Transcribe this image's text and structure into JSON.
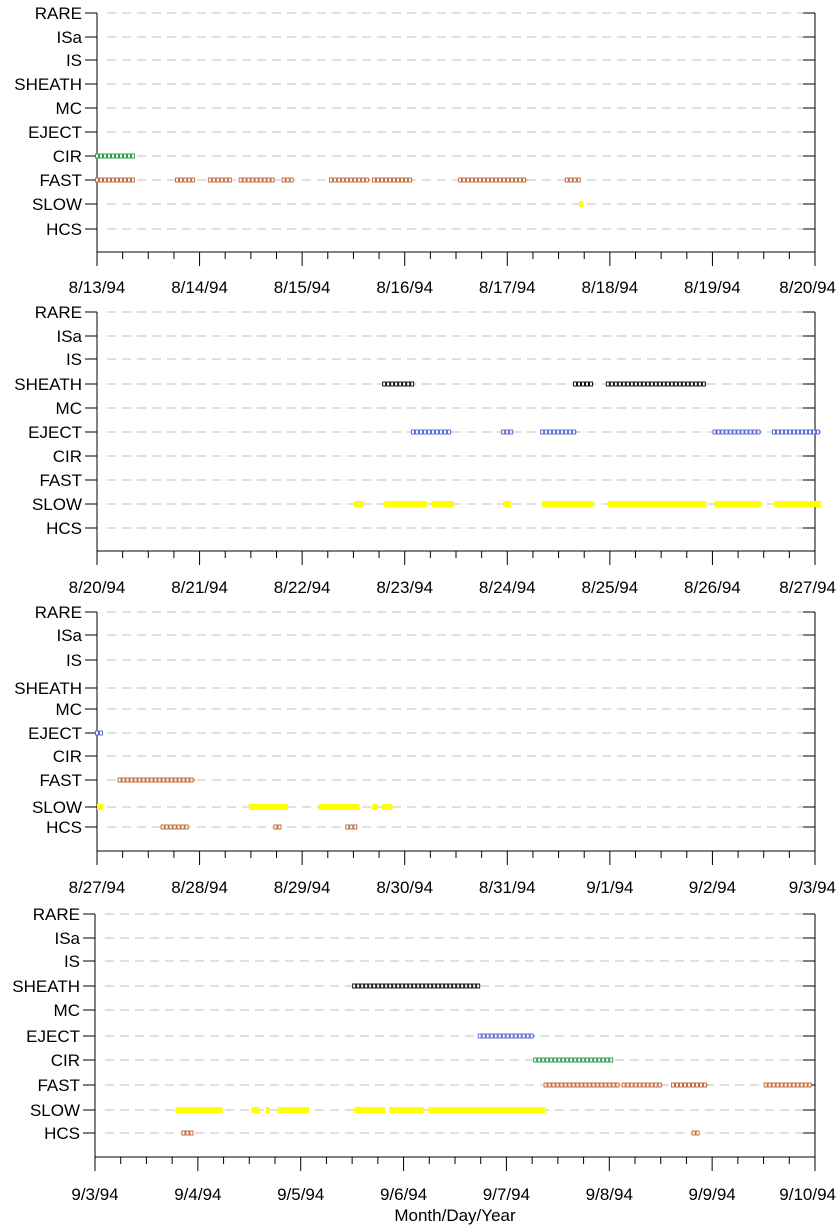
{
  "colors": {
    "grid": "#c0c0c0",
    "axis": "#000000",
    "SLOW": "#ffff00",
    "FAST": "#c0622c",
    "CIR": "#1a9641",
    "EJECT": "#5060d0",
    "SHEATH": "#000000",
    "HCS": "#c0622c"
  },
  "chart_data": [
    {
      "type": "timeline",
      "categories": [
        "HCS",
        "SLOW",
        "FAST",
        "CIR",
        "EJECT",
        "MC",
        "SHEATH",
        "IS",
        "ISa",
        "RARE"
      ],
      "x_tick_labels": [
        "8/13/94",
        "8/14/94",
        "8/15/94",
        "8/16/94",
        "8/17/94",
        "8/18/94",
        "8/19/94",
        "8/20/94"
      ],
      "xlim": [
        0,
        7
      ],
      "xlabel": "",
      "grid": true,
      "events": [
        {
          "category": "CIR",
          "intervals": [
            [
              0.0,
              0.36
            ]
          ]
        },
        {
          "category": "FAST",
          "intervals": [
            [
              0.0,
              0.36
            ],
            [
              0.78,
              0.82
            ],
            [
              0.86,
              0.94
            ],
            [
              1.1,
              1.3
            ],
            [
              1.4,
              1.72
            ],
            [
              1.82,
              1.9
            ],
            [
              2.28,
              2.66
            ],
            [
              2.7,
              3.08
            ],
            [
              3.54,
              4.2
            ],
            [
              4.58,
              4.7
            ]
          ]
        },
        {
          "category": "SLOW",
          "intervals": [
            [
              4.7,
              4.74
            ]
          ]
        }
      ]
    },
    {
      "type": "timeline",
      "categories": [
        "HCS",
        "SLOW",
        "FAST",
        "CIR",
        "EJECT",
        "MC",
        "SHEATH",
        "IS",
        "ISa",
        "RARE"
      ],
      "x_tick_labels": [
        "8/20/94",
        "8/21/94",
        "8/22/94",
        "8/23/94",
        "8/24/94",
        "8/25/94",
        "8/26/94",
        "8/27/94"
      ],
      "xlim": [
        0,
        7
      ],
      "xlabel": "",
      "grid": true,
      "events": [
        {
          "category": "SHEATH",
          "intervals": [
            [
              2.8,
              3.08
            ],
            [
              4.66,
              4.84
            ],
            [
              4.98,
              5.94
            ]
          ]
        },
        {
          "category": "EJECT",
          "intervals": [
            [
              3.08,
              3.46
            ],
            [
              3.96,
              4.04
            ],
            [
              4.34,
              4.68
            ],
            [
              6.02,
              6.48
            ],
            [
              6.6,
              7.06
            ]
          ]
        },
        {
          "category": "SLOW",
          "intervals": [
            [
              2.5,
              2.6
            ],
            [
              2.8,
              3.22
            ],
            [
              3.26,
              3.48
            ],
            [
              3.96,
              4.04
            ],
            [
              4.34,
              4.84
            ],
            [
              4.98,
              5.94
            ],
            [
              6.02,
              6.48
            ],
            [
              6.6,
              7.06
            ]
          ]
        }
      ]
    },
    {
      "type": "timeline",
      "categories": [
        "HCS",
        "SLOW",
        "FAST",
        "CIR",
        "EJECT",
        "MC",
        "SHEATH",
        "IS",
        "ISa",
        "RARE"
      ],
      "x_tick_labels": [
        "8/27/94",
        "8/28/94",
        "8/29/94",
        "8/30/94",
        "8/31/94",
        "9/1/94",
        "9/2/94",
        "9/3/94"
      ],
      "xlim": [
        0,
        7
      ],
      "xlabel": "",
      "grid": true,
      "events": [
        {
          "category": "EJECT",
          "intervals": [
            [
              0.0,
              0.06
            ]
          ]
        },
        {
          "category": "FAST",
          "intervals": [
            [
              0.22,
              0.96
            ]
          ]
        },
        {
          "category": "SLOW",
          "intervals": [
            [
              0.0,
              0.06
            ],
            [
              1.48,
              1.86
            ],
            [
              2.16,
              2.56
            ],
            [
              2.68,
              2.74
            ],
            [
              2.78,
              2.88
            ]
          ]
        },
        {
          "category": "HCS",
          "intervals": [
            [
              0.64,
              0.9
            ],
            [
              1.74,
              1.78
            ],
            [
              2.44,
              2.52
            ]
          ]
        }
      ]
    },
    {
      "type": "timeline",
      "categories": [
        "HCS",
        "SLOW",
        "FAST",
        "CIR",
        "EJECT",
        "MC",
        "SHEATH",
        "IS",
        "ISa",
        "RARE"
      ],
      "x_tick_labels": [
        "9/3/94",
        "9/4/94",
        "9/5/94",
        "9/6/94",
        "9/7/94",
        "9/8/94",
        "9/9/94",
        "9/10/94"
      ],
      "xlim": [
        0,
        7
      ],
      "xlabel": "Month/Day/Year",
      "grid": true,
      "events": [
        {
          "category": "SHEATH",
          "intervals": [
            [
              2.52,
              3.74
            ]
          ]
        },
        {
          "category": "EJECT",
          "intervals": [
            [
              3.74,
              4.28
            ]
          ]
        },
        {
          "category": "CIR",
          "intervals": [
            [
              4.28,
              5.02
            ]
          ]
        },
        {
          "category": "FAST",
          "intervals": [
            [
              4.38,
              5.08
            ],
            [
              5.14,
              5.52
            ],
            [
              5.62,
              5.96
            ],
            [
              6.52,
              6.96
            ]
          ]
        },
        {
          "category": "SLOW",
          "intervals": [
            [
              0.78,
              1.24
            ],
            [
              1.52,
              1.6
            ],
            [
              1.66,
              1.7
            ],
            [
              1.78,
              2.08
            ],
            [
              2.52,
              2.82
            ],
            [
              2.86,
              3.2
            ],
            [
              3.24,
              4.38
            ]
          ]
        },
        {
          "category": "HCS",
          "intervals": [
            [
              0.86,
              0.94
            ],
            [
              5.82,
              5.86
            ]
          ]
        }
      ]
    }
  ]
}
